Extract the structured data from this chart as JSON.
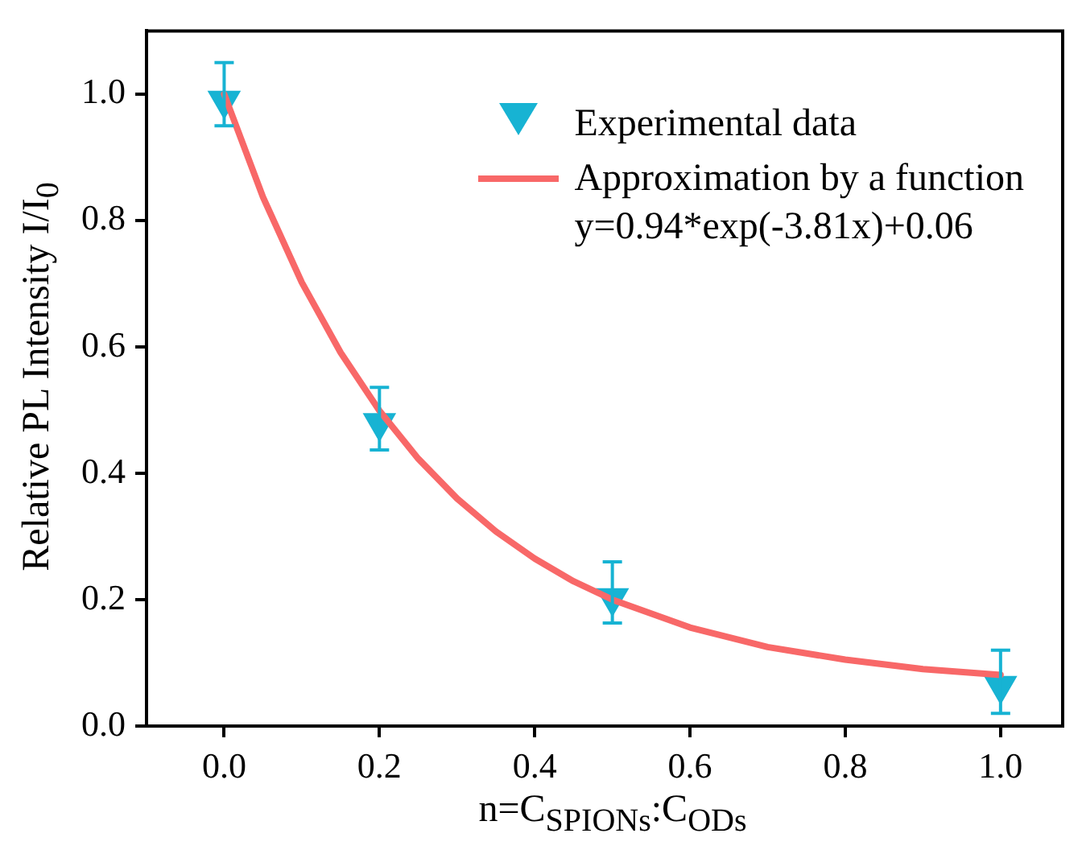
{
  "chart_data": {
    "type": "scatter",
    "xlabel": "n=C$_{SPIONs}$:C$_{ODs}$",
    "ylabel": "Relative PL Intensity I/I$_{0}$",
    "xlim": [
      -0.1,
      1.08
    ],
    "xticks": [
      {
        "value": 0,
        "label": "0.0"
      },
      0.2,
      0.4,
      0.6,
      0.8,
      {
        "value": 1,
        "label": "1.0"
      }
    ],
    "ylim": [
      0,
      1.1
    ],
    "yticks": [
      {
        "value": 0,
        "label": "0.0"
      },
      0.2,
      0.4,
      0.6,
      0.8,
      {
        "value": 1,
        "label": "1.0"
      }
    ],
    "grid": false,
    "legend": "top right",
    "marker": "triangle",
    "series": [
      {
        "name": "Experimental data",
        "color": "#17b3d3",
        "x": [
          0,
          0.2,
          0.5,
          1.0
        ],
        "values": [
          0.99,
          0.48,
          0.203,
          0.064
        ],
        "errors": [
          [
            0.95,
            1.05
          ],
          [
            0.437,
            0.536
          ],
          [
            0.163,
            0.26
          ],
          [
            0.02,
            0.12
          ]
        ]
      },
      {
        "name": "Approximation by a function",
        "type": "line",
        "color": "#f86868",
        "marker": "none",
        "line_style": "solid",
        "x": [
          0,
          0.05,
          0.1,
          0.15,
          0.2,
          0.25,
          0.3,
          0.35,
          0.4,
          0.45,
          0.5,
          0.6,
          0.7,
          0.8,
          0.9,
          1.0
        ],
        "values": [
          1.0,
          0.837,
          0.702,
          0.591,
          0.499,
          0.423,
          0.36,
          0.308,
          0.265,
          0.229,
          0.2,
          0.156,
          0.125,
          0.105,
          0.09,
          0.081
        ]
      }
    ],
    "annotations": [
      "y=0.94*exp(-3.81x)+0.06"
    ]
  }
}
